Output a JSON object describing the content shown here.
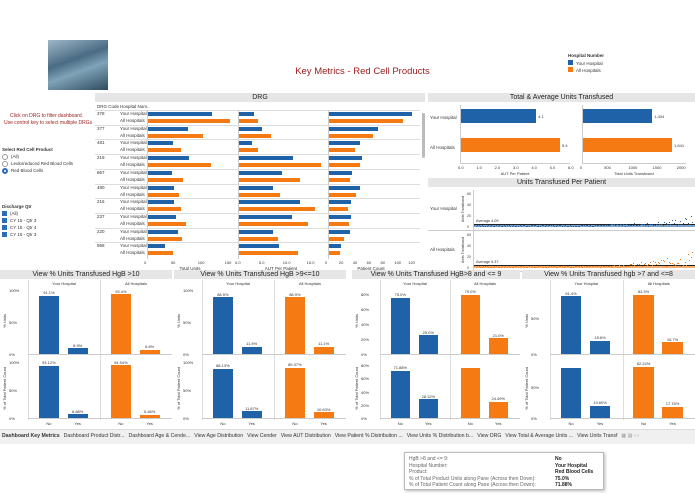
{
  "colors": {
    "your": "#1f62a8",
    "all": "#f57a14",
    "title": "#9b1c1c"
  },
  "title": "Key Metrics - Red Cell Products",
  "legend": {
    "title": "Hospital Number",
    "items": [
      "Your Hospital",
      "All Hospitals"
    ]
  },
  "instructions": [
    "Click on DRG to filter dashboard.",
    "Use control key to select multiple DRGs"
  ],
  "product_filter": {
    "title": "Select Red Cell Product",
    "options": [
      "(All)",
      "Leukoreduced Red Blood Cells",
      "Red Blood Cells"
    ],
    "selected": 2
  },
  "qtr_filter": {
    "title": "Discharge Qtr",
    "options": [
      "(All)",
      "CY 15 - Qtr 3",
      "CY 15 - Qtr 4",
      "CY 16 - Qtr 3"
    ]
  },
  "drg": {
    "title": "DRG",
    "col_drg": "DRG Code",
    "col_hosp": "Hospital Num..",
    "hosp_labels": [
      "Your Hospital",
      "All Hospitals"
    ],
    "codes": [
      "378",
      "377",
      "481",
      "219",
      "867",
      "480",
      "216",
      "237",
      "220",
      "958"
    ],
    "total_units": {
      "label": "Total Units",
      "ticks": [
        "0",
        "50",
        "100",
        "150"
      ],
      "max": 160,
      "your": [
        119,
        75,
        46,
        77,
        44,
        49,
        49,
        53,
        56,
        31
      ],
      "all": [
        152,
        103,
        62,
        117,
        65,
        58,
        61,
        70,
        63,
        47
      ]
    },
    "aut": {
      "label": "AUT Per Patient",
      "ticks": [
        "0.0",
        "5.0",
        "10.0",
        "15.0"
      ],
      "max": 18,
      "your": [
        3.1,
        4.8,
        2.7,
        11.4,
        9.1,
        7.2,
        12.8,
        11.1,
        7.2,
        8.4
      ],
      "all": [
        4.0,
        6.6,
        3.9,
        17.2,
        12.8,
        8.6,
        15.9,
        14.5,
        8.1,
        12.4
      ]
    },
    "patients": {
      "label": "Patient Count",
      "ticks": [
        "0",
        "20",
        "40",
        "60",
        "80",
        "100",
        "120"
      ],
      "max": 124,
      "your": [
        120,
        70,
        44,
        47,
        33,
        45,
        31,
        32,
        30,
        17
      ],
      "all": [
        107,
        64,
        38,
        44,
        30,
        39,
        27,
        29,
        21,
        16
      ]
    }
  },
  "totavg": {
    "title": "Total & Average Units Transfused",
    "rows": [
      "Your Hospital",
      "All Hospitals"
    ],
    "aut": {
      "label": "AUT Per Patient",
      "ticks": [
        "0.0",
        "1.0",
        "2.0",
        "3.0",
        "4.0",
        "5.0",
        "6.0"
      ],
      "max": 6,
      "values": [
        4.1,
        5.4
      ],
      "labels": [
        "4.1",
        "5.4"
      ]
    },
    "total": {
      "label": "Total  Units Transfused",
      "ticks": [
        "0",
        "500",
        "1000",
        "1500",
        "2000"
      ],
      "max": 2150,
      "values": [
        1434,
        1841
      ],
      "labels": [
        "1,434",
        "1,841"
      ]
    }
  },
  "perpatient": {
    "title": "Units Transfused Per Patient",
    "rows": [
      "Your Hospital",
      "All Hospitals"
    ],
    "ylabel": "Units Transfused",
    "ticks": [
      "60",
      "40",
      "20",
      "0"
    ],
    "averages": [
      "Average 4.09",
      "Average 5.37"
    ]
  },
  "panels": [
    {
      "title": "View % Units Transfused  HgB >10",
      "ticks_top": [
        "100%",
        "50%",
        "0%"
      ],
      "ticks_bot": [
        "100%",
        "50%",
        "0%"
      ],
      "max_top": 100,
      "max_bot": 100,
      "units": [
        [
          91.1,
          8.9
        ],
        [
          93.4,
          6.6
        ]
      ],
      "units_lbl": [
        [
          "91.1%",
          "8.9%"
        ],
        [
          "93.4%",
          "6.6%"
        ]
      ],
      "pts": [
        [
          93.12,
          6.88
        ],
        [
          94.54,
          5.46
        ]
      ],
      "pts_lbl": [
        [
          "93.12%",
          "6.88%"
        ],
        [
          "94.54%",
          "5.46%"
        ]
      ]
    },
    {
      "title": "View % Units Transfused HgB  >9<=10",
      "ticks_top": [
        "100%",
        "50%",
        "0%"
      ],
      "ticks_bot": [
        "100%",
        "50%",
        "0%"
      ],
      "max_top": 100,
      "max_bot": 100,
      "units": [
        [
          88.5,
          11.5
        ],
        [
          88.9,
          11.1
        ]
      ],
      "units_lbl": [
        [
          "88.5%",
          "11.5%"
        ],
        [
          "88.9%",
          "11.1%"
        ]
      ],
      "pts": [
        [
          88.13,
          11.87
        ],
        [
          89.37,
          10.63
        ]
      ],
      "pts_lbl": [
        [
          "88.13%",
          "11.87%"
        ],
        [
          "89.37%",
          "10.63%"
        ]
      ]
    },
    {
      "title": "View % Units Transfused HgB>8 and <= 9",
      "ticks_top": [
        "80%",
        "60%",
        "40%",
        "20%",
        "0%"
      ],
      "ticks_bot": [
        "80%",
        "60%",
        "40%",
        "20%",
        "0%"
      ],
      "max_top": 85,
      "max_bot": 85,
      "units": [
        [
          75.0,
          25.0
        ],
        [
          79.0,
          21.0
        ]
      ],
      "units_lbl": [
        [
          "75.0%",
          "25.0%"
        ],
        [
          "79.0%",
          "21.0%"
        ]
      ],
      "pts": [
        [
          71.88,
          28.12
        ],
        [
          75.51,
          24.49
        ]
      ],
      "pts_lbl": [
        [
          "71.88%",
          "28.12%"
        ],
        [
          "",
          "24.49%"
        ]
      ]
    },
    {
      "title": "View % Units Transfused hgb >7 and <=8",
      "ticks_top": [
        "50%",
        "0%"
      ],
      "ticks_bot": [
        "50%",
        "0%"
      ],
      "max_top": 90,
      "max_bot": 90,
      "units": [
        [
          81.4,
          18.6
        ],
        [
          83.3,
          16.7
        ]
      ],
      "units_lbl": [
        [
          "81.4%",
          "18.6%"
        ],
        [
          "83.3%",
          "16.7%"
        ]
      ],
      "pts": [
        [
          80.4,
          19.6
        ],
        [
          82.24,
          17.76
        ]
      ],
      "pts_lbl": [
        [
          "",
          "19.60%"
        ],
        [
          "82.24%",
          "17.76%"
        ]
      ]
    }
  ],
  "facet_labels": [
    "Your Hospital",
    "All Hospitals"
  ],
  "x_cats": [
    "No",
    "Yes"
  ],
  "y_top": "% Units",
  "y_bot": "% of Total Patient Count",
  "tooltip": {
    "keys": [
      "HgB >8 and <= 9:",
      "Hospital Number:",
      "Product:",
      "% of Total Product Units along Pane (Across then Down):",
      "% of Total Patient Count along Pane (Across then Down):"
    ],
    "values": [
      "No",
      "Your Hospital",
      "Red Blood Cells",
      "75.0%",
      "71.88%"
    ]
  },
  "tabs": [
    "Dashboard Key Metrics",
    "Dashboard Product Distr...",
    "Dashboard Age & Cende...",
    "View Age Distribution",
    "View Cender",
    "View AUT Distribution",
    "View Patient % Distribuiton ...",
    "View Units % Distribution b...",
    "View DRG",
    "View Total & Average Units ...",
    "View Units Transf"
  ]
}
